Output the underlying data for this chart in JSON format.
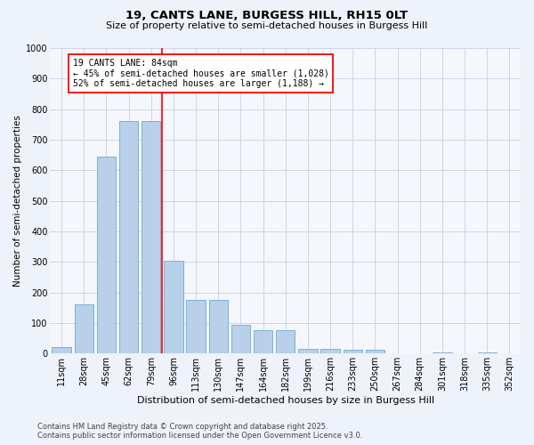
{
  "title_line1": "19, CANTS LANE, BURGESS HILL, RH15 0LT",
  "title_line2": "Size of property relative to semi-detached houses in Burgess Hill",
  "xlabel": "Distribution of semi-detached houses by size in Burgess Hill",
  "ylabel": "Number of semi-detached properties",
  "categories": [
    "11sqm",
    "28sqm",
    "45sqm",
    "62sqm",
    "79sqm",
    "96sqm",
    "113sqm",
    "130sqm",
    "147sqm",
    "164sqm",
    "182sqm",
    "199sqm",
    "216sqm",
    "233sqm",
    "250sqm",
    "267sqm",
    "284sqm",
    "301sqm",
    "318sqm",
    "335sqm",
    "352sqm"
  ],
  "values": [
    20,
    160,
    645,
    760,
    760,
    305,
    175,
    175,
    93,
    78,
    78,
    15,
    15,
    12,
    12,
    0,
    0,
    5,
    0,
    5,
    0
  ],
  "bar_color": "#b8d0ea",
  "bar_edge_color": "#6aaad4",
  "vline_position": 4.5,
  "vline_color": "red",
  "annotation_text": "19 CANTS LANE: 84sqm\n← 45% of semi-detached houses are smaller (1,028)\n52% of semi-detached houses are larger (1,188) →",
  "annotation_box_color": "white",
  "annotation_box_edge_color": "red",
  "ylim": [
    0,
    1000
  ],
  "yticks": [
    0,
    100,
    200,
    300,
    400,
    500,
    600,
    700,
    800,
    900,
    1000
  ],
  "footer_line1": "Contains HM Land Registry data © Crown copyright and database right 2025.",
  "footer_line2": "Contains public sector information licensed under the Open Government Licence v3.0.",
  "bg_color": "#eef2fa",
  "plot_bg_color": "#f5f7fd",
  "grid_color": "#c8cfe8",
  "title_fontsize": 9.5,
  "subtitle_fontsize": 8,
  "ylabel_fontsize": 7.5,
  "xlabel_fontsize": 8,
  "tick_fontsize": 7,
  "annot_fontsize": 7,
  "footer_fontsize": 6
}
